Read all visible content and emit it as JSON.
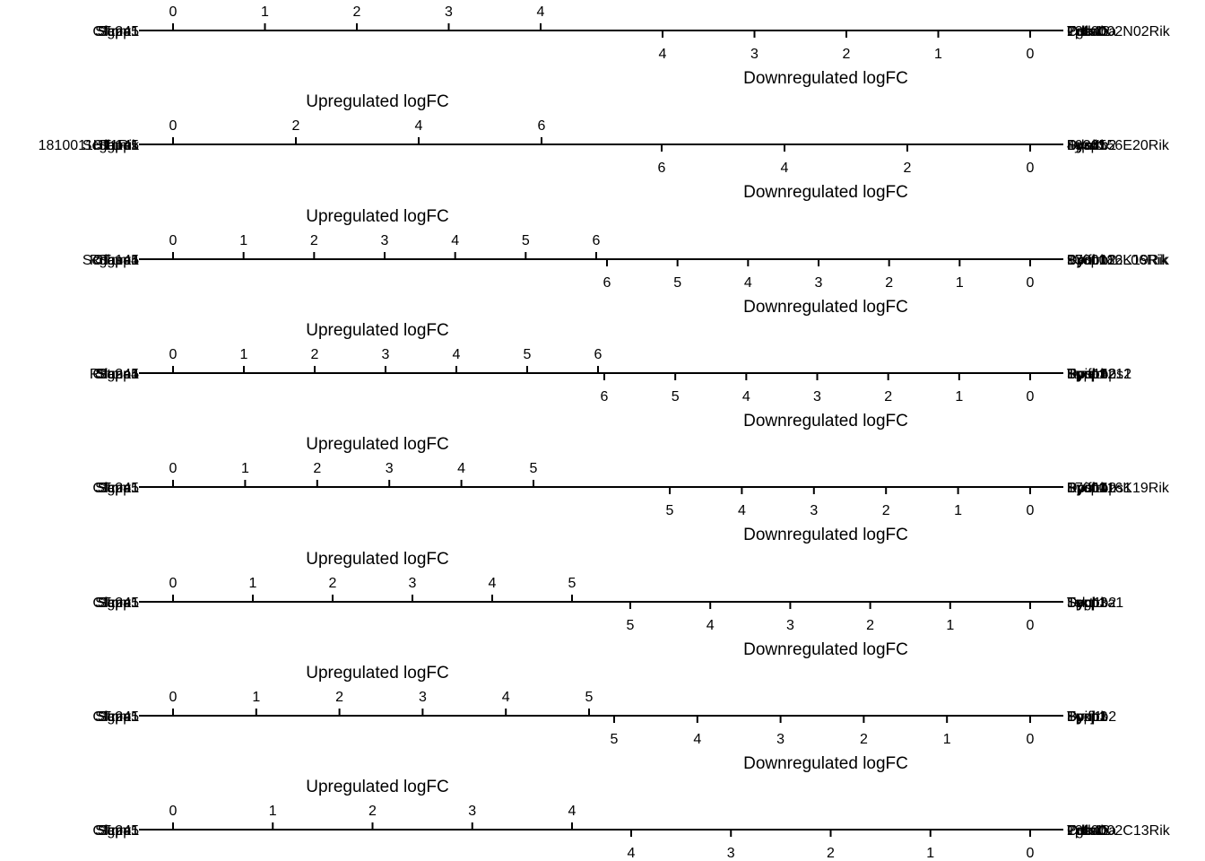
{
  "chart_data": [
    {
      "type": "bar",
      "up": {
        "title": "",
        "ticks": [
          0,
          1,
          2,
          3,
          4
        ],
        "max": 4.0,
        "genes": [
          "Slc2a1",
          "Sgpp1",
          "Cfap45",
          "Tnnt1",
          "Stmn1"
        ]
      },
      "down": {
        "title": "Downregulated logFC",
        "ticks": [
          0,
          1,
          2,
          3,
          4
        ],
        "max": 4.0,
        "genes": [
          "2310002N02Rik",
          "Cdkn1a",
          "Lpcat2",
          "Tgfb1",
          "Pde4b"
        ]
      }
    },
    {
      "type": "bar",
      "up": {
        "title": "Upregulated logFC",
        "ticks": [
          0,
          2,
          4,
          6
        ],
        "max": 6.0,
        "genes": [
          "1810011H11Rik",
          "Scgb1a1",
          "Sgpp1",
          "Cfap45",
          "Tnnt1"
        ]
      },
      "down": {
        "title": "Downregulated logFC",
        "ticks": [
          0,
          2,
          4,
          6
        ],
        "max": 6.0,
        "genes": [
          "Sycp1",
          "Dynlrb2",
          "Lypd1",
          "4930556E20Rik",
          "Pde4b"
        ]
      }
    },
    {
      "type": "bar",
      "up": {
        "title": "Upregulated logFC",
        "ticks": [
          0,
          1,
          2,
          3,
          4,
          5,
          6
        ],
        "max": 6.0,
        "genes": [
          "Rnase4",
          "Scgb1a1",
          "Sgpp1",
          "Cfap45",
          "Tnnt1"
        ]
      },
      "down": {
        "title": "Downregulated logFC",
        "ticks": [
          0,
          1,
          2,
          3,
          4,
          5,
          6
        ],
        "max": 6.0,
        "genes": [
          "Bpifb1",
          "Sycp1",
          "Dynlrb2",
          "9330182L06Rik",
          "1700016K19Rik"
        ]
      }
    },
    {
      "type": "bar",
      "up": {
        "title": "Upregulated logFC",
        "ticks": [
          0,
          1,
          2,
          3,
          4,
          5,
          6
        ],
        "max": 6.0,
        "genes": [
          "Slc2a1",
          "Sgpp1",
          "Rnase4",
          "Stmn1",
          "Cfap45"
        ]
      },
      "down": {
        "title": "Downregulated logFC",
        "ticks": [
          0,
          1,
          2,
          3,
          4,
          5,
          6
        ],
        "max": 6.0,
        "genes": [
          "Tmem212",
          "Bpifb1",
          "Sycp1",
          "Dynlrb2",
          "Tppp3",
          "Rps14ps1"
        ]
      }
    },
    {
      "type": "bar",
      "up": {
        "title": "Upregulated logFC",
        "ticks": [
          0,
          1,
          2,
          3,
          4,
          5
        ],
        "max": 5.0,
        "genes": [
          "Slc2a1",
          "Sgpp1",
          "Cfap45",
          "Tnnt1",
          "Stmn1"
        ]
      },
      "down": {
        "title": "Downregulated logFC",
        "ticks": [
          0,
          1,
          2,
          3,
          4,
          5
        ],
        "max": 5.0,
        "genes": [
          "1700016K19Rik",
          "Sycp1",
          "Dynlrb2",
          "Rps14ps1",
          "Bpifb1"
        ]
      }
    },
    {
      "type": "bar",
      "up": {
        "title": "Upregulated logFC",
        "ticks": [
          0,
          1,
          2,
          3,
          4,
          5
        ],
        "max": 5.0,
        "genes": [
          "Slc2a1",
          "Cfap45",
          "Sgpp1",
          "Tnnt1",
          "Stmn1"
        ]
      },
      "down": {
        "title": "Downregulated logFC",
        "ticks": [
          0,
          1,
          2,
          3,
          4,
          5
        ],
        "max": 5.0,
        "genes": [
          "Tekt1",
          "Sycp1",
          "Tppp3",
          "Scgb3a1",
          "Dynlrb2"
        ]
      }
    },
    {
      "type": "bar",
      "up": {
        "title": "Upregulated logFC",
        "ticks": [
          0,
          1,
          2,
          3,
          4,
          5
        ],
        "max": 5.0,
        "genes": [
          "Slc2a1",
          "Sgpp1",
          "Cfap45",
          "Tnnt1",
          "Stmn1"
        ]
      },
      "down": {
        "title": "Downregulated logFC",
        "ticks": [
          0,
          1,
          2,
          3,
          4,
          5
        ],
        "max": 5.0,
        "genes": [
          "Bpifb1",
          "Sycp1",
          "Dynlrb2",
          "Tppp3",
          "Foxj1"
        ]
      }
    },
    {
      "type": "bar",
      "up": {
        "title": "Upregulated logFC",
        "ticks": [
          0,
          1,
          2,
          3,
          4
        ],
        "max": 4.0,
        "genes": [
          "Tnnt1",
          "Cfap45",
          "Sgpp1",
          "Slc2a1",
          "Stmn1"
        ]
      },
      "down": {
        "title": "",
        "ticks": [
          0,
          1,
          2,
          3,
          4
        ],
        "max": 4.0,
        "genes": [
          "Pde4b",
          "Lpcat2",
          "Cdkn1a",
          "2310002C13Rik",
          "Tgfb1"
        ]
      }
    }
  ]
}
